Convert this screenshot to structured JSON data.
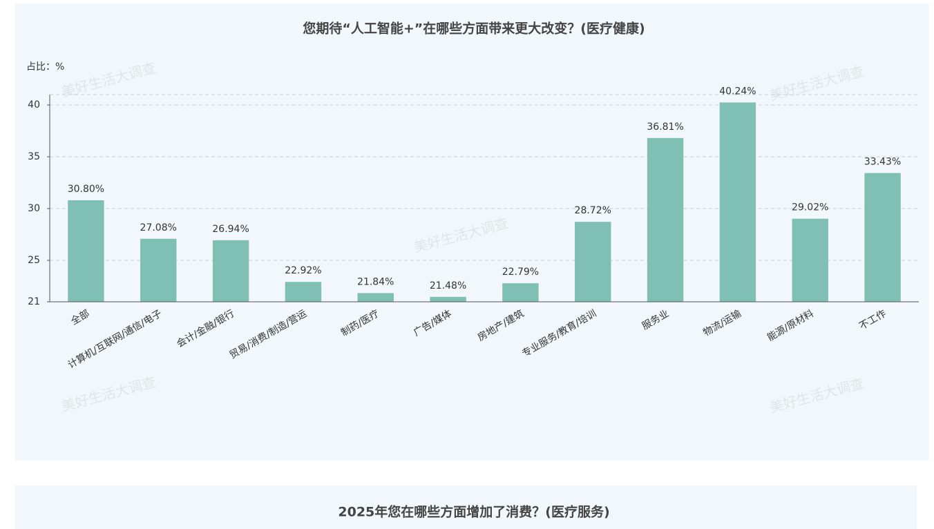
{
  "chart_data": [
    {
      "type": "bar",
      "title": "您期待“人工智能+”在哪些方面带来更大改变？(医疗健康)",
      "y_label": "占比：%",
      "watermark": "美好生活大调查",
      "categories": [
        "全部",
        "计算机/互联网/通信/电子",
        "会计/金融/银行",
        "贸易/消费/制造/营运",
        "制药/医疗",
        "广告/媒体",
        "房地产/建筑",
        "专业服务/教育/培训",
        "服务业",
        "物流/运输",
        "能源/原材料",
        "不工作"
      ],
      "values": [
        30.8,
        27.08,
        26.94,
        22.92,
        21.84,
        21.48,
        22.79,
        28.72,
        36.81,
        40.24,
        29.02,
        33.43
      ],
      "value_labels": [
        "30.80%",
        "27.08%",
        "26.94%",
        "22.92%",
        "21.84%",
        "21.48%",
        "22.79%",
        "28.72%",
        "36.81%",
        "40.24%",
        "29.02%",
        "33.43%"
      ],
      "color": "#80bfb3",
      "ylim": [
        21,
        41
      ],
      "yticks": [
        21,
        25,
        30,
        35,
        40
      ],
      "grid": true
    },
    {
      "type": "bar",
      "title": "2025年您在哪些方面增加了消费？(医疗服务)"
    }
  ]
}
